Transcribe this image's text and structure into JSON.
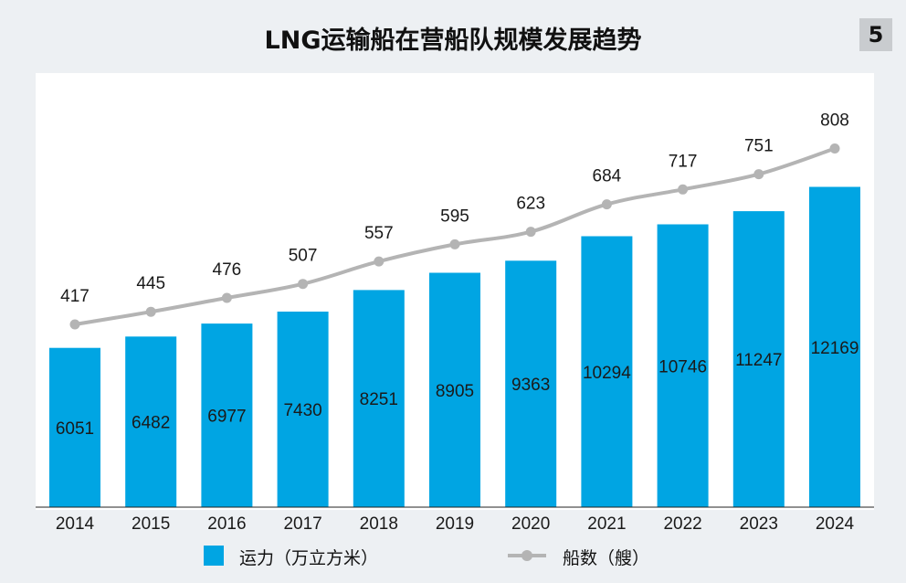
{
  "title": "LNG运输船在营船队规模发展趋势",
  "figure_number": "5",
  "colors": {
    "bar": "#00a5e3",
    "line": "#b4b4b4",
    "background": "#edf0f3",
    "panel": "#ffffff"
  },
  "chart_data": {
    "type": "bar",
    "categories": [
      "2014",
      "2015",
      "2016",
      "2017",
      "2018",
      "2019",
      "2020",
      "2021",
      "2022",
      "2023",
      "2024"
    ],
    "series": [
      {
        "name": "运力（万立方米）",
        "type": "bar",
        "values": [
          6051,
          6482,
          6977,
          7430,
          8251,
          8905,
          9363,
          10294,
          10746,
          11247,
          12169
        ]
      },
      {
        "name": "船数（艘）",
        "type": "line",
        "values": [
          417,
          445,
          476,
          507,
          557,
          595,
          623,
          684,
          717,
          751,
          808
        ]
      }
    ],
    "legend_position": "bottom",
    "grid": false,
    "axis": "x only"
  }
}
